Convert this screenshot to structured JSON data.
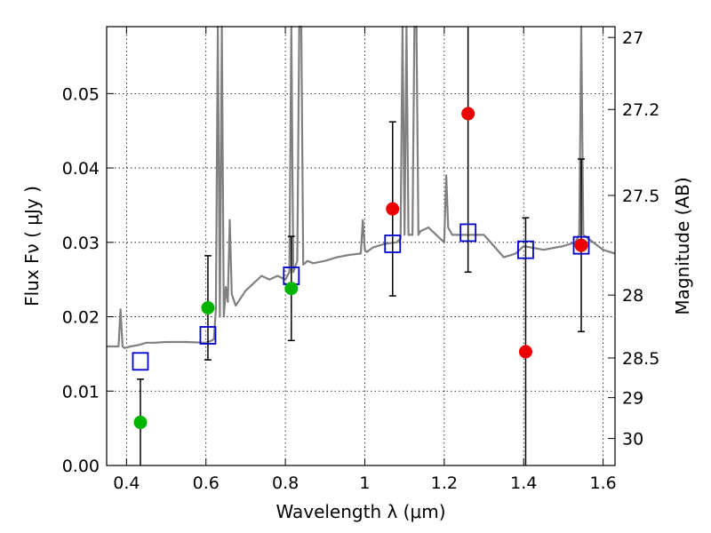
{
  "chart_data": {
    "type": "scatter",
    "xlabel": "Wavelength  λ (μm)",
    "ylabel": "Flux  Fν  ( μJy )",
    "y2label": "Magnitude (AB)",
    "xlim": [
      0.35,
      1.63
    ],
    "ylim": [
      0.0,
      0.059
    ],
    "grid": true,
    "x_ticks": [
      {
        "value": 0.4,
        "label": "0.4"
      },
      {
        "value": 0.6,
        "label": "0.6"
      },
      {
        "value": 0.8,
        "label": "0.8"
      },
      {
        "value": 1.0,
        "label": "1"
      },
      {
        "value": 1.2,
        "label": "1.2"
      },
      {
        "value": 1.4,
        "label": "1.4"
      },
      {
        "value": 1.6,
        "label": "1.6"
      }
    ],
    "y_ticks": [
      {
        "value": 0.0,
        "label": "0.00"
      },
      {
        "value": 0.01,
        "label": "0.01"
      },
      {
        "value": 0.02,
        "label": "0.02"
      },
      {
        "value": 0.03,
        "label": "0.03"
      },
      {
        "value": 0.04,
        "label": "0.04"
      },
      {
        "value": 0.05,
        "label": "0.05"
      }
    ],
    "y2_ticks": [
      {
        "value": 27,
        "label": "27"
      },
      {
        "value": 27.2,
        "label": "27.2"
      },
      {
        "value": 27.5,
        "label": "27.5"
      },
      {
        "value": 28,
        "label": "28"
      },
      {
        "value": 28.5,
        "label": "28.5"
      },
      {
        "value": 29,
        "label": "29"
      },
      {
        "value": 30,
        "label": "30"
      }
    ],
    "colors": {
      "spectrum": "#808080",
      "model_box": "#0000cc",
      "green_point": "#00b400",
      "red_point": "#ee0000",
      "errorbar": "#000000"
    },
    "spectrum": {
      "x": [
        0.35,
        0.38,
        0.385,
        0.39,
        0.395,
        0.41,
        0.43,
        0.45,
        0.47,
        0.5,
        0.55,
        0.6,
        0.615,
        0.62,
        0.625,
        0.63,
        0.635,
        0.64,
        0.645,
        0.65,
        0.655,
        0.66,
        0.665,
        0.675,
        0.7,
        0.72,
        0.74,
        0.76,
        0.78,
        0.8,
        0.81,
        0.815,
        0.82,
        0.83,
        0.835,
        0.84,
        0.845,
        0.85,
        0.855,
        0.87,
        0.9,
        0.93,
        0.96,
        0.99,
        0.995,
        1.0,
        1.005,
        1.02,
        1.05,
        1.08,
        1.09,
        1.095,
        1.1,
        1.105,
        1.11,
        1.12,
        1.125,
        1.13,
        1.135,
        1.14,
        1.16,
        1.18,
        1.2,
        1.205,
        1.21,
        1.22,
        1.26,
        1.3,
        1.35,
        1.38,
        1.4,
        1.45,
        1.5,
        1.53,
        1.54,
        1.545,
        1.55,
        1.6,
        1.63
      ],
      "y": [
        0.016,
        0.016,
        0.021,
        0.016,
        0.0158,
        0.016,
        0.0162,
        0.0165,
        0.0165,
        0.0166,
        0.0166,
        0.0165,
        0.0168,
        0.017,
        0.021,
        0.059,
        0.02,
        0.059,
        0.02,
        0.024,
        0.022,
        0.033,
        0.023,
        0.0215,
        0.0235,
        0.0245,
        0.0255,
        0.025,
        0.0255,
        0.025,
        0.026,
        0.059,
        0.026,
        0.0275,
        0.059,
        0.059,
        0.027,
        0.0272,
        0.0275,
        0.0272,
        0.0275,
        0.028,
        0.0283,
        0.0285,
        0.033,
        0.029,
        0.0287,
        0.0293,
        0.0298,
        0.03,
        0.0305,
        0.059,
        0.031,
        0.059,
        0.031,
        0.031,
        0.059,
        0.059,
        0.031,
        0.0315,
        0.032,
        0.031,
        0.03,
        0.039,
        0.032,
        0.031,
        0.031,
        0.031,
        0.028,
        0.0285,
        0.0295,
        0.029,
        0.0295,
        0.03,
        0.031,
        0.059,
        0.031,
        0.029,
        0.0285
      ]
    },
    "model_boxes": [
      {
        "x": 0.435,
        "y": 0.014
      },
      {
        "x": 0.605,
        "y": 0.0175
      },
      {
        "x": 0.815,
        "y": 0.0255
      },
      {
        "x": 1.07,
        "y": 0.0298
      },
      {
        "x": 1.26,
        "y": 0.0313
      },
      {
        "x": 1.405,
        "y": 0.029
      },
      {
        "x": 1.545,
        "y": 0.0296
      }
    ],
    "points": [
      {
        "x": 0.435,
        "y": 0.0058,
        "err": 0.0058,
        "group": "green"
      },
      {
        "x": 0.605,
        "y": 0.0212,
        "err": 0.007,
        "group": "green"
      },
      {
        "x": 0.815,
        "y": 0.0238,
        "err": 0.007,
        "group": "green"
      },
      {
        "x": 1.07,
        "y": 0.0345,
        "err": 0.0117,
        "group": "red"
      },
      {
        "x": 1.26,
        "y": 0.0473,
        "err": 0.0213,
        "group": "red"
      },
      {
        "x": 1.405,
        "y": 0.0153,
        "err": 0.018,
        "group": "red"
      },
      {
        "x": 1.545,
        "y": 0.0296,
        "err": 0.0116,
        "group": "red"
      }
    ]
  }
}
